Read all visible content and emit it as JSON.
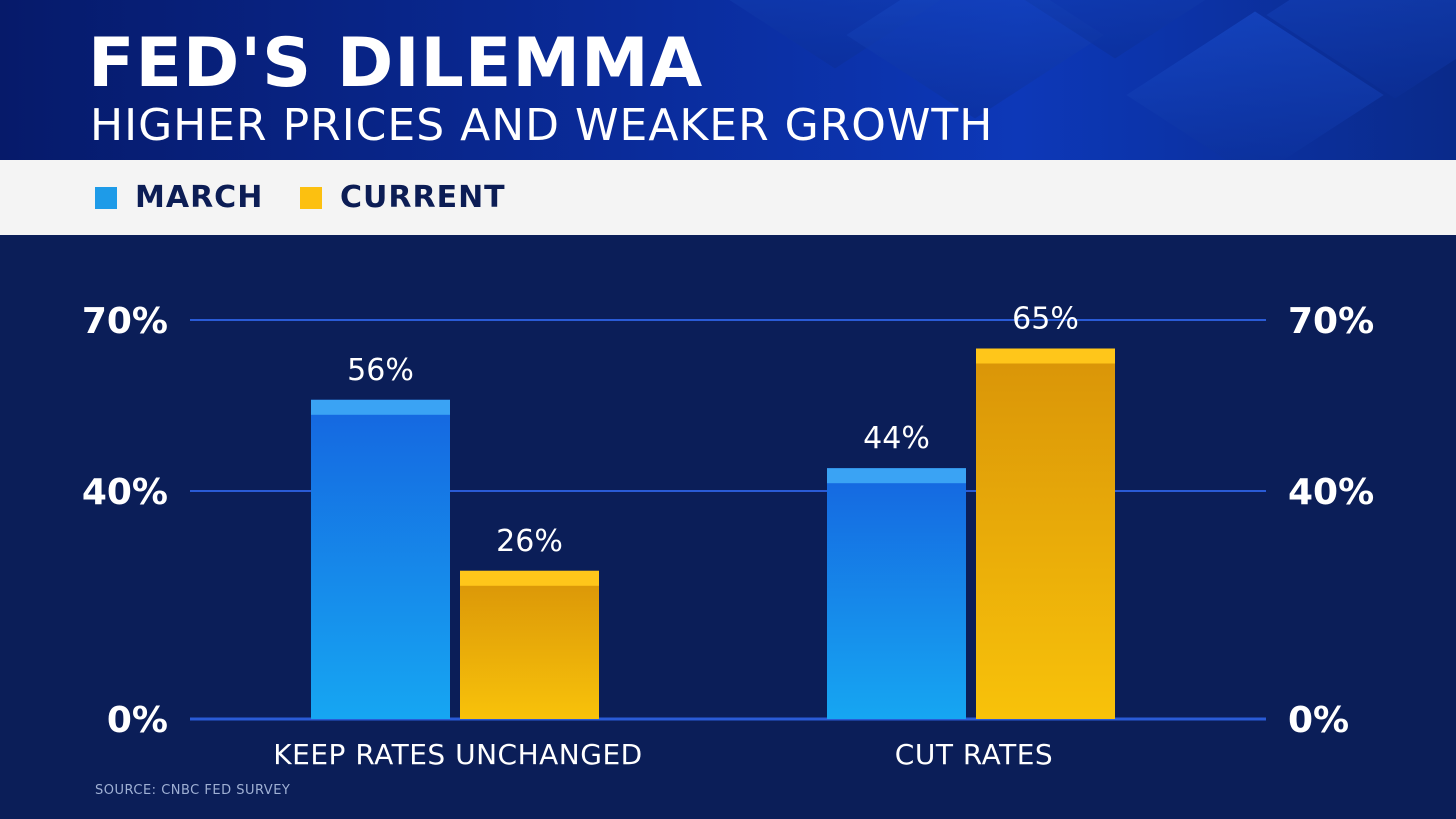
{
  "header": {
    "title": "FED'S DILEMMA",
    "subtitle": "HIGHER PRICES AND WEAKER GROWTH"
  },
  "legend": [
    {
      "label": "MARCH",
      "color": "#1e9be8"
    },
    {
      "label": "CURRENT",
      "color": "#fcc010"
    }
  ],
  "source": "SOURCE: CNBC FED SURVEY",
  "chart_data": {
    "type": "bar",
    "title": "FED'S DILEMMA",
    "subtitle": "HIGHER PRICES AND WEAKER GROWTH",
    "categories": [
      "KEEP RATES UNCHANGED",
      "CUT RATES"
    ],
    "series": [
      {
        "name": "MARCH",
        "values": [
          56,
          44
        ],
        "color": "#1e9be8"
      },
      {
        "name": "CURRENT",
        "values": [
          26,
          65
        ],
        "color": "#fcc010"
      }
    ],
    "value_suffix": "%",
    "yticks": [
      0,
      40,
      70
    ],
    "ytick_labels": [
      "0%",
      "40%",
      "70%"
    ],
    "ylim": [
      0,
      70
    ],
    "grid": true,
    "legend_position": "top-left"
  }
}
